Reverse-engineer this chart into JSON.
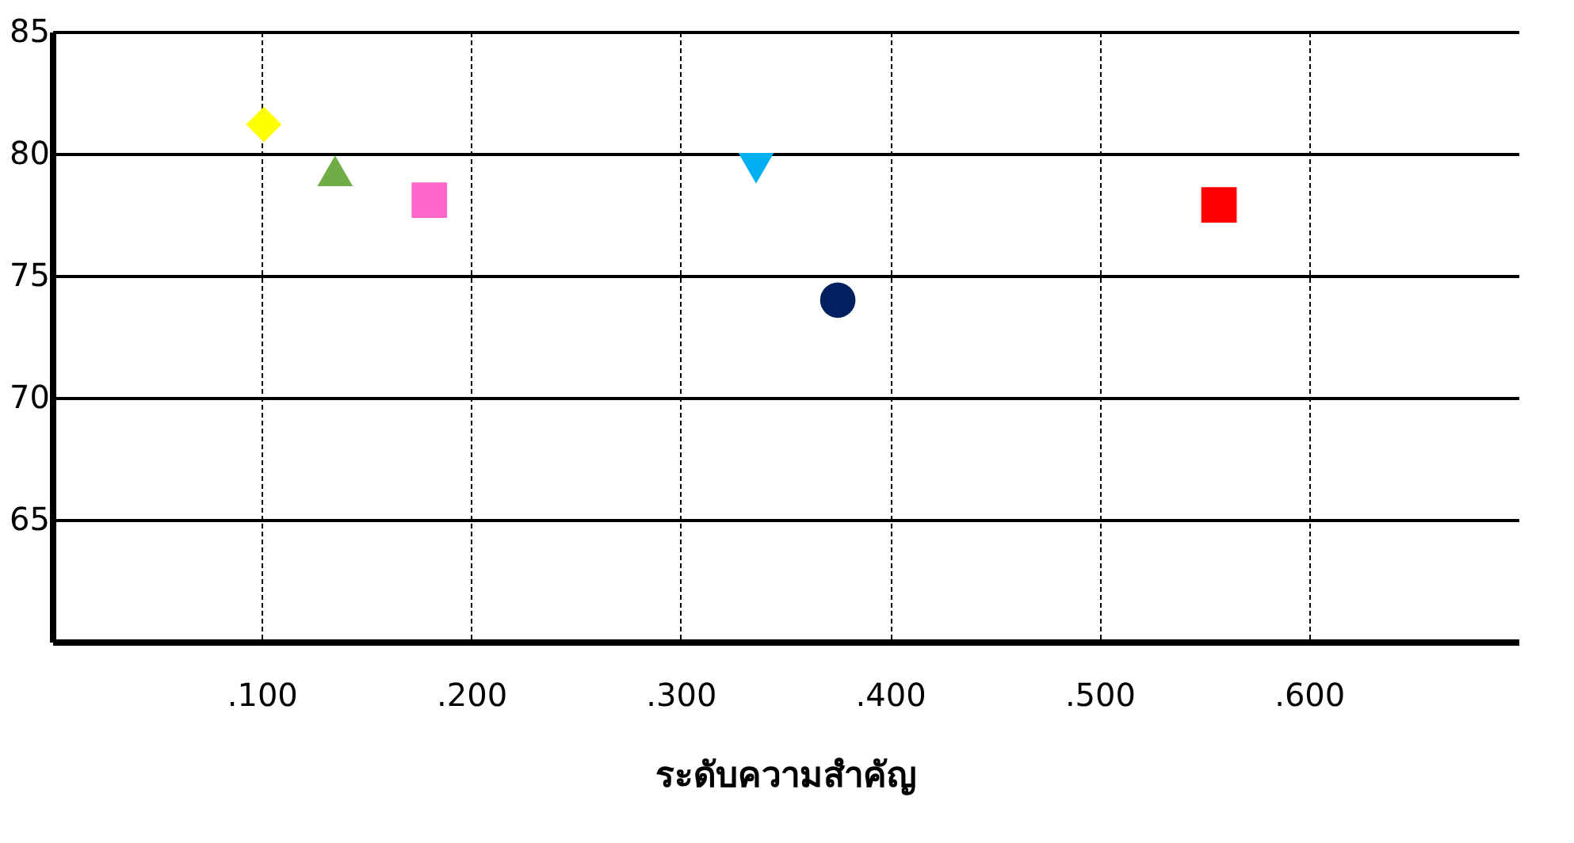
{
  "chart_data": {
    "type": "scatter",
    "xlabel": "ระดับความสำคัญ",
    "xlim": [
      0,
      0.7
    ],
    "xticks": [
      {
        "value": 0.1,
        "label": ".100"
      },
      {
        "value": 0.2,
        "label": ".200"
      },
      {
        "value": 0.3,
        "label": ".300"
      },
      {
        "value": 0.4,
        "label": ".400"
      },
      {
        "value": 0.5,
        "label": ".500"
      },
      {
        "value": 0.6,
        "label": ".600"
      }
    ],
    "ylim": [
      60,
      85
    ],
    "yticks": [
      65,
      70,
      75,
      80,
      85
    ],
    "grid": true,
    "series": [
      {
        "color": "#ffff00",
        "marker": "diamond",
        "x": [
          0.101
        ],
        "values": [
          81.2
        ]
      },
      {
        "color": "#70ad47",
        "marker": "triangle",
        "x": [
          0.135
        ],
        "values": [
          79.3
        ]
      },
      {
        "color": "#ff66cc",
        "marker": "square",
        "x": [
          0.18
        ],
        "values": [
          78.1
        ]
      },
      {
        "color": "#00b0f0",
        "marker": "triangle-down",
        "x": [
          0.336
        ],
        "values": [
          79.4
        ]
      },
      {
        "color": "#002060",
        "marker": "circle",
        "x": [
          0.375
        ],
        "values": [
          74.0
        ]
      },
      {
        "color": "#ff0000",
        "marker": "square",
        "x": [
          0.557
        ],
        "values": [
          77.9
        ]
      }
    ]
  }
}
